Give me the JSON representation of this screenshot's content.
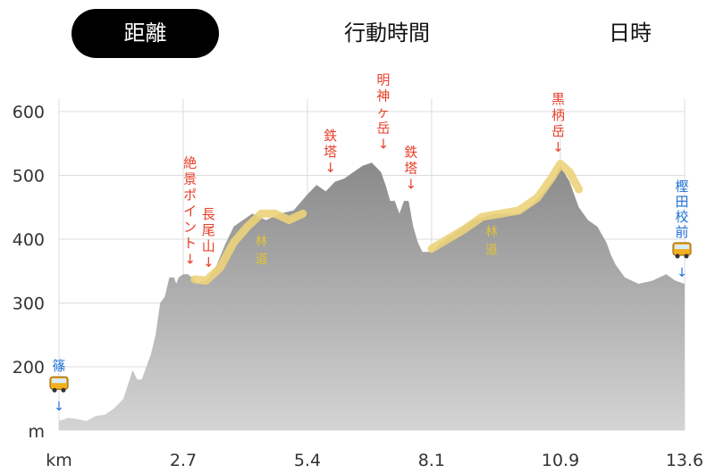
{
  "tabs": [
    {
      "label": "距離",
      "active": true
    },
    {
      "label": "行動時間",
      "active": false
    },
    {
      "label": "日時",
      "active": false
    }
  ],
  "colors": {
    "fill": "#9e9e9e",
    "grid": "#dcdcdc",
    "forest_road": "#ecd37a",
    "landmark_text": "#e8402b",
    "bus_text": "#1e6fd9",
    "axis_text": "#333333"
  },
  "chart_data": {
    "type": "area",
    "title": "",
    "xlabel": "km",
    "ylabel": "m",
    "xlim": [
      0,
      13.6
    ],
    "ylim": [
      100,
      620
    ],
    "x_ticks": [
      "2.7",
      "5.4",
      "8.1",
      "10.9",
      "13.6"
    ],
    "y_ticks": [
      "200",
      "300",
      "400",
      "500",
      "600"
    ],
    "grid": true,
    "profile": {
      "x": [
        0,
        0.2,
        0.4,
        0.6,
        0.8,
        1.0,
        1.2,
        1.4,
        1.6,
        1.7,
        1.8,
        1.9,
        2.0,
        2.1,
        2.2,
        2.3,
        2.4,
        2.5,
        2.55,
        2.6,
        2.7,
        2.8,
        2.9,
        3.0,
        3.2,
        3.4,
        3.6,
        3.8,
        4.0,
        4.2,
        4.5,
        4.8,
        5.1,
        5.4,
        5.6,
        5.8,
        6.0,
        6.2,
        6.4,
        6.6,
        6.8,
        7.0,
        7.1,
        7.2,
        7.3,
        7.4,
        7.5,
        7.6,
        7.7,
        7.8,
        7.9,
        8.0,
        8.1,
        8.3,
        8.6,
        9.0,
        9.5,
        10.0,
        10.3,
        10.6,
        10.8,
        10.9,
        11.1,
        11.3,
        11.5,
        11.7,
        11.9,
        12.0,
        12.1,
        12.3,
        12.6,
        12.9,
        13.2,
        13.4,
        13.6
      ],
      "y": [
        115,
        120,
        118,
        115,
        123,
        125,
        135,
        150,
        195,
        180,
        180,
        200,
        220,
        250,
        300,
        310,
        340,
        340,
        330,
        340,
        345,
        345,
        340,
        332,
        335,
        355,
        390,
        420,
        430,
        440,
        430,
        440,
        445,
        470,
        485,
        475,
        490,
        495,
        505,
        515,
        520,
        505,
        485,
        460,
        460,
        440,
        460,
        460,
        420,
        395,
        380,
        380,
        380,
        395,
        410,
        430,
        440,
        440,
        455,
        480,
        500,
        515,
        490,
        450,
        430,
        420,
        395,
        375,
        360,
        340,
        330,
        335,
        345,
        335,
        330
      ]
    },
    "forest_road_segments": [
      {
        "label": "林道",
        "x": [
          2.95,
          3.2,
          3.5,
          3.8,
          4.1,
          4.4,
          4.7,
          5.0,
          5.3
        ],
        "y": [
          337,
          335,
          355,
          395,
          420,
          440,
          440,
          430,
          440
        ]
      },
      {
        "label": "林道",
        "x": [
          8.1,
          8.4,
          8.8,
          9.2,
          9.6,
          10.0,
          10.4,
          10.7,
          10.9,
          11.1,
          11.3
        ],
        "y": [
          385,
          398,
          415,
          435,
          440,
          445,
          465,
          495,
          518,
          505,
          478
        ]
      }
    ],
    "markers": [
      {
        "label": "絶景ポイント",
        "x": 2.85,
        "y": 345,
        "kind": "landmark"
      },
      {
        "label": "長尾山",
        "x": 3.25,
        "y": 340,
        "kind": "landmark"
      },
      {
        "label": "鉄塔",
        "x": 5.9,
        "y": 488,
        "kind": "landmark"
      },
      {
        "label": "明神ヶ岳",
        "x": 7.05,
        "y": 525,
        "kind": "landmark"
      },
      {
        "label": "鉄塔",
        "x": 7.65,
        "y": 462,
        "kind": "landmark"
      },
      {
        "label": "黒柄岳",
        "x": 10.85,
        "y": 520,
        "kind": "landmark"
      },
      {
        "label": "篠",
        "x": 0.0,
        "y": 120,
        "kind": "bus"
      },
      {
        "label": "樫田校前",
        "x": 13.6,
        "y": 330,
        "kind": "bus"
      }
    ]
  }
}
